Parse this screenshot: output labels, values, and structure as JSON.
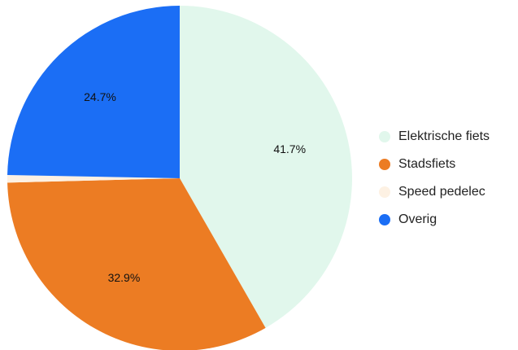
{
  "chart_data": {
    "type": "pie",
    "slices": [
      {
        "name": "Elektrische fiets",
        "value": 41.7,
        "label": "41.7%",
        "color": "#e1f7ec"
      },
      {
        "name": "Stadsfiets",
        "value": 32.9,
        "label": "32.9%",
        "color": "#ec7c23"
      },
      {
        "name": "Speed pedelec",
        "value": 0.7,
        "label": "",
        "color": "#fdf1e3"
      },
      {
        "name": "Overig",
        "value": 24.7,
        "label": "24.7%",
        "color": "#1b6ef5"
      }
    ],
    "legend_position": "right"
  }
}
